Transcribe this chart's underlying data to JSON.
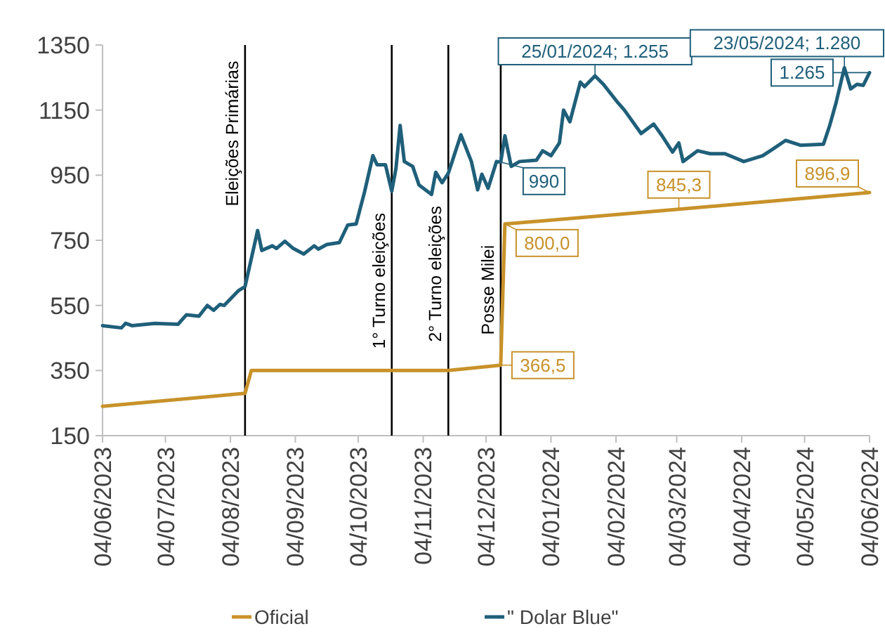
{
  "chart_data": {
    "type": "line",
    "legend": "bottom",
    "grid": false,
    "ylim": [
      150,
      1350
    ],
    "yticks": [
      150,
      350,
      550,
      750,
      950,
      1150,
      1350
    ],
    "xlim": [
      "2023-06-04",
      "2024-06-04"
    ],
    "xticks": [
      {
        "value": "2023-06-04",
        "label": "04/06/2023"
      },
      {
        "value": "2023-07-04",
        "label": "04/07/2023"
      },
      {
        "value": "2023-08-04",
        "label": "04/08/2023"
      },
      {
        "value": "2023-09-04",
        "label": "04/09/2023"
      },
      {
        "value": "2023-10-04",
        "label": "04/10/2023"
      },
      {
        "value": "2023-11-04",
        "label": "04/11/2023"
      },
      {
        "value": "2023-12-04",
        "label": "04/12/2023"
      },
      {
        "value": "2024-01-04",
        "label": "04/01/2024"
      },
      {
        "value": "2024-02-04",
        "label": "04/02/2024"
      },
      {
        "value": "2024-03-04",
        "label": "04/03/2024"
      },
      {
        "value": "2024-04-04",
        "label": "04/04/2024"
      },
      {
        "value": "2024-05-04",
        "label": "04/05/2024"
      },
      {
        "value": "2024-06-04",
        "label": "04/06/2024"
      }
    ],
    "series": [
      {
        "name": "Oficial",
        "color": "#c8922a",
        "x": [
          "2023-06-04",
          "2023-08-11",
          "2023-08-14",
          "2023-11-16",
          "2023-12-11",
          "2023-12-13",
          "2024-03-05",
          "2024-06-04"
        ],
        "values": [
          240,
          280,
          350,
          350,
          366.5,
          800,
          845.3,
          896.9
        ]
      },
      {
        "name": "\" Dolar Blue\"",
        "color": "#1f5f7a",
        "x": [
          "2023-06-04",
          "2023-06-13",
          "2023-06-15",
          "2023-06-18",
          "2023-06-29",
          "2023-07-10",
          "2023-07-14",
          "2023-07-20",
          "2023-07-24",
          "2023-07-27",
          "2023-07-30",
          "2023-08-01",
          "2023-08-08",
          "2023-08-11",
          "2023-08-17",
          "2023-08-19",
          "2023-08-24",
          "2023-08-26",
          "2023-08-30",
          "2023-09-03",
          "2023-09-08",
          "2023-09-13",
          "2023-09-15",
          "2023-09-19",
          "2023-09-25",
          "2023-09-29",
          "2023-10-03",
          "2023-10-07",
          "2023-10-11",
          "2023-10-13",
          "2023-10-17",
          "2023-10-20",
          "2023-10-22",
          "2023-10-24",
          "2023-10-26",
          "2023-10-30",
          "2023-11-02",
          "2023-11-08",
          "2023-11-10",
          "2023-11-13",
          "2023-11-16",
          "2023-11-22",
          "2023-11-27",
          "2023-11-30",
          "2023-12-02",
          "2023-12-05",
          "2023-12-09",
          "2023-12-11",
          "2023-12-13",
          "2023-12-16",
          "2023-12-20",
          "2023-12-28",
          "2023-12-31",
          "2024-01-04",
          "2024-01-08",
          "2024-01-10",
          "2024-01-13",
          "2024-01-18",
          "2024-01-20",
          "2024-01-25",
          "2024-01-29",
          "2024-02-05",
          "2024-02-08",
          "2024-02-16",
          "2024-02-22",
          "2024-02-26",
          "2024-03-02",
          "2024-03-05",
          "2024-03-07",
          "2024-03-14",
          "2024-03-20",
          "2024-03-27",
          "2024-04-05",
          "2024-04-14",
          "2024-04-19",
          "2024-04-25",
          "2024-05-02",
          "2024-05-13",
          "2024-05-16",
          "2024-05-19",
          "2024-05-23",
          "2024-05-26",
          "2024-05-29",
          "2024-06-01",
          "2024-06-04"
        ],
        "values": [
          488,
          481,
          495,
          488,
          495,
          492,
          521,
          517,
          550,
          535,
          553,
          550,
          596,
          608,
          780,
          719,
          733,
          725,
          747,
          725,
          708,
          733,
          723,
          737,
          743,
          797,
          800,
          898,
          1010,
          982,
          982,
          901,
          970,
          1103,
          992,
          977,
          920,
          891,
          959,
          927,
          956,
          1074,
          992,
          905,
          953,
          910,
          992,
          990,
          1071,
          977,
          992,
          996,
          1025,
          1010,
          1049,
          1150,
          1114,
          1236,
          1222,
          1255,
          1229,
          1172,
          1150,
          1078,
          1107,
          1071,
          1021,
          1049,
          992,
          1025,
          1016,
          1016,
          992,
          1010,
          1031,
          1057,
          1042,
          1045,
          1103,
          1172,
          1280,
          1215,
          1229,
          1226,
          1265
        ]
      }
    ],
    "ref_lines": [
      {
        "axis": "x",
        "value": "2023-08-11",
        "label": "Eleições Primárias",
        "color": "#000000"
      },
      {
        "axis": "x",
        "value": "2023-10-20",
        "label": "1° Turno eleições",
        "color": "#000000"
      },
      {
        "axis": "x",
        "value": "2023-11-16",
        "label": "2° Turno eleições",
        "color": "#000000"
      },
      {
        "axis": "x",
        "value": "2023-12-11",
        "label": "Posse Milei",
        "color": "#000000"
      }
    ],
    "annotations": [
      {
        "text": "990",
        "x": "2023-12-11",
        "y": 990
      },
      {
        "text": "25/01/2024;  1.255",
        "x": "2024-01-25",
        "y": 1255
      },
      {
        "text": "23/05/2024;  1.280",
        "x": "2024-05-23",
        "y": 1280
      },
      {
        "text": "1.265",
        "x": "2024-06-04",
        "y": 1265
      },
      {
        "text": "366,5",
        "x": "2023-12-11",
        "y": 366.5
      },
      {
        "text": "800,0",
        "x": "2023-12-13",
        "y": 800
      },
      {
        "text": "845,3",
        "x": "2024-03-05",
        "y": 845.3
      },
      {
        "text": "896,9",
        "x": "2024-06-04",
        "y": 896.9
      }
    ]
  }
}
